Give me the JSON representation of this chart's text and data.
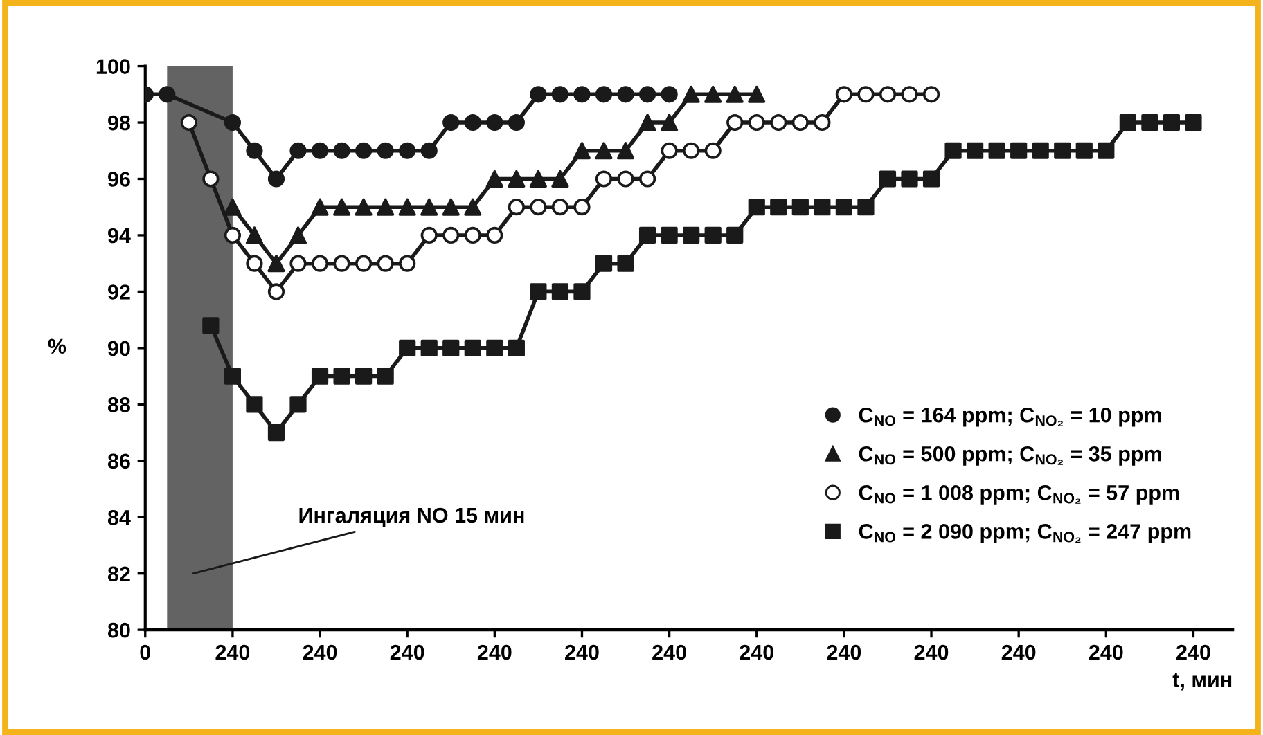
{
  "chart_data": {
    "type": "line",
    "xlabel": "t, мин",
    "ylabel": "%",
    "categories": [
      "0",
      null,
      null,
      null,
      "240",
      null,
      null,
      null,
      "240",
      null,
      null,
      null,
      "240",
      null,
      null,
      null,
      "240",
      null,
      null,
      null,
      "240",
      null,
      null,
      null,
      "240",
      null,
      null,
      null,
      "240",
      null,
      null,
      null,
      "240",
      null,
      null,
      null,
      "240",
      null,
      null,
      null,
      "240",
      null,
      null,
      null,
      "240",
      null,
      null,
      null,
      "240",
      null
    ],
    "ylim": [
      80,
      100
    ],
    "yticks": [
      80,
      82,
      84,
      86,
      88,
      90,
      92,
      94,
      96,
      98,
      100
    ],
    "grid": false,
    "legend": "bottom right",
    "line_style": "solid",
    "annotations": [
      "Ингаляция NO 15 мин"
    ],
    "series": [
      {
        "name": "C$_{NO}$ = 164 ppm; C$_{NO₂}$ = 10 ppm",
        "color": "#1a1a1a",
        "marker": "circle",
        "values": [
          99,
          99,
          null,
          null,
          98,
          97,
          96,
          97,
          97,
          97,
          97,
          97,
          97,
          97,
          98,
          98,
          98,
          98,
          99,
          99,
          99,
          99,
          99,
          99,
          99,
          null,
          null,
          null,
          null,
          null,
          null,
          null,
          null,
          null,
          null,
          null,
          null,
          null,
          null,
          null,
          null,
          null,
          null,
          null,
          null,
          null,
          null,
          null,
          null,
          null
        ]
      },
      {
        "name": "C$_{NO}$ = 500 ppm; C$_{NO₂}$ = 35 ppm",
        "color": "#1a1a1a",
        "marker": "triangle",
        "values": [
          null,
          null,
          null,
          null,
          95,
          94,
          93,
          94,
          95,
          95,
          95,
          95,
          95,
          95,
          95,
          95,
          96,
          96,
          96,
          96,
          97,
          97,
          97,
          98,
          98,
          99,
          99,
          99,
          99,
          null,
          null,
          null,
          null,
          null,
          null,
          null,
          null,
          null,
          null,
          null,
          null,
          null,
          null,
          null,
          null,
          null,
          null,
          null,
          null,
          null
        ]
      },
      {
        "name": "C$_{NO}$ = 1 008 ppm; C$_{NO₂}$ = 57 ppm",
        "color": "#1a1a1a",
        "marker": "circle",
        "colors": [
          "#ffffff",
          "#ffffff",
          "#ffffff",
          "#ffffff",
          "#ffffff",
          "#ffffff",
          "#ffffff",
          "#ffffff",
          "#ffffff",
          "#ffffff",
          "#ffffff",
          "#ffffff",
          "#ffffff",
          "#ffffff",
          "#ffffff",
          "#ffffff",
          "#ffffff",
          "#ffffff",
          "#ffffff",
          "#ffffff",
          "#ffffff",
          "#ffffff",
          "#ffffff",
          "#ffffff",
          "#ffffff",
          "#ffffff",
          "#ffffff",
          "#ffffff",
          "#ffffff",
          "#ffffff",
          "#ffffff",
          "#ffffff",
          "#ffffff",
          "#ffffff",
          "#ffffff",
          "#ffffff",
          "#ffffff",
          "#ffffff",
          "#ffffff",
          "#ffffff",
          "#ffffff",
          "#ffffff",
          "#ffffff",
          "#ffffff",
          "#ffffff",
          "#ffffff",
          "#ffffff",
          "#ffffff",
          "#ffffff",
          "#ffffff"
        ],
        "values": [
          null,
          null,
          98,
          96,
          94,
          93,
          92,
          93,
          93,
          93,
          93,
          93,
          93,
          94,
          94,
          94,
          94,
          95,
          95,
          95,
          95,
          96,
          96,
          96,
          97,
          97,
          97,
          98,
          98,
          98,
          98,
          98,
          99,
          99,
          99,
          99,
          99,
          null,
          null,
          null,
          null,
          null,
          null,
          null,
          null,
          null,
          null,
          null,
          null,
          null
        ]
      },
      {
        "name": "C$_{NO}$ = 2 090 ppm; C$_{NO₂}$ = 247 ppm",
        "color": "#1a1a1a",
        "marker": "square",
        "values": [
          null,
          null,
          null,
          90.8,
          89,
          88,
          87,
          88,
          89,
          89,
          89,
          89,
          90,
          90,
          90,
          90,
          90,
          90,
          92,
          92,
          92,
          93,
          93,
          94,
          94,
          94,
          94,
          94,
          95,
          95,
          95,
          95,
          95,
          95,
          96,
          96,
          96,
          97,
          97,
          97,
          97,
          97,
          97,
          97,
          97,
          98,
          98,
          98,
          98,
          null
        ]
      }
    ]
  }
}
